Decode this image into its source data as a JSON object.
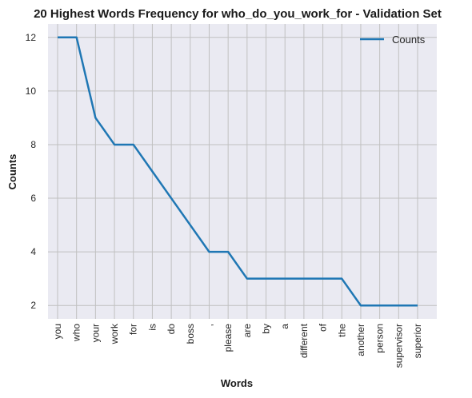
{
  "chart_data": {
    "type": "line",
    "title": "20 Highest Words Frequency for who_do_you_work_for - Validation Set",
    "xlabel": "Words",
    "ylabel": "Counts",
    "categories": [
      "you",
      "who",
      "your",
      "work",
      "for",
      "is",
      "do",
      "boss",
      ",",
      "please",
      "are",
      "by",
      "a",
      "different",
      "of",
      "the",
      "another",
      "person",
      "supervisor",
      "superior"
    ],
    "series": [
      {
        "name": "Counts",
        "values": [
          12,
          12,
          9,
          8,
          8,
          7,
          6,
          5,
          4,
          4,
          3,
          3,
          3,
          3,
          3,
          3,
          2,
          2,
          2,
          2
        ]
      }
    ],
    "ylim": [
      1.5,
      12.5
    ],
    "yticks": [
      2,
      4,
      6,
      8,
      10,
      12
    ],
    "grid": true,
    "legend": "top-right",
    "colors": {
      "line": "#1f77b4",
      "plot_bg": "#eaeaf2",
      "grid": "#c0c0c0"
    }
  }
}
